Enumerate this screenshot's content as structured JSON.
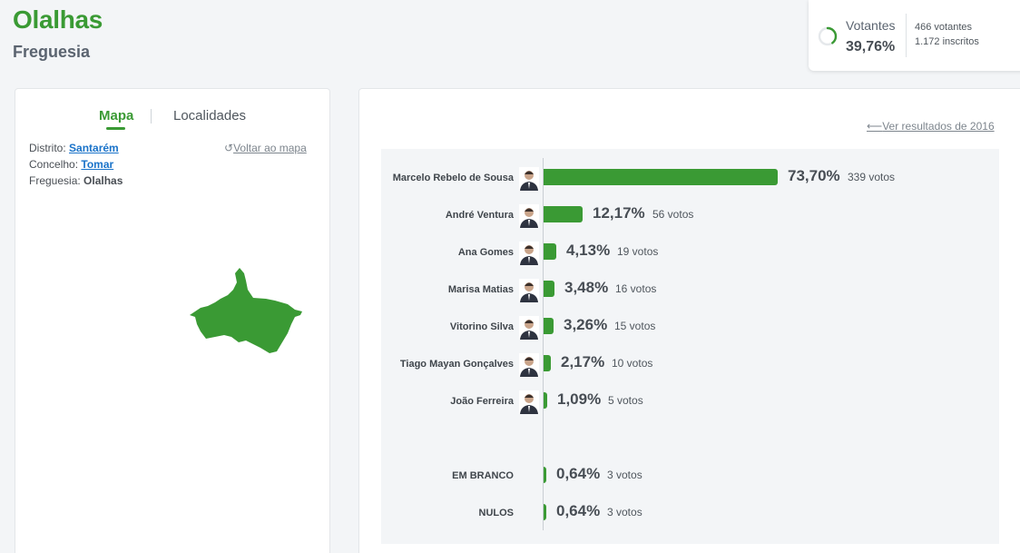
{
  "header": {
    "title": "Olalhas",
    "subtitle": "Freguesia"
  },
  "stats": {
    "label": "Votantes",
    "percent": "39,76%",
    "percent_value": 39.76,
    "votantes": "466 votantes",
    "inscritos": "1.172 inscritos"
  },
  "tabs": {
    "map": "Mapa",
    "localities": "Localidades"
  },
  "location": {
    "distrito_label": "Distrito:",
    "distrito_value": "Santarém",
    "concelho_label": "Concelho:",
    "concelho_value": "Tomar",
    "freguesia_label": "Freguesia:",
    "freguesia_value": "Olalhas",
    "back_to_map": "Voltar ao mapa"
  },
  "results": {
    "previous_link": "Ver resultados de 2016",
    "candidates": [
      {
        "name": "Marcelo Rebelo de Sousa",
        "percent": "73,70%",
        "value": 73.7,
        "votes": "339 votos",
        "avatar": "candidate-photo"
      },
      {
        "name": "André Ventura",
        "percent": "12,17%",
        "value": 12.17,
        "votes": "56 votos",
        "avatar": "candidate-photo"
      },
      {
        "name": "Ana Gomes",
        "percent": "4,13%",
        "value": 4.13,
        "votes": "19 votos",
        "avatar": "candidate-photo"
      },
      {
        "name": "Marisa Matias",
        "percent": "3,48%",
        "value": 3.48,
        "votes": "16 votos",
        "avatar": "candidate-photo"
      },
      {
        "name": "Vitorino Silva",
        "percent": "3,26%",
        "value": 3.26,
        "votes": "15 votos",
        "avatar": "candidate-photo"
      },
      {
        "name": "Tiago Mayan Gonçalves",
        "percent": "2,17%",
        "value": 2.17,
        "votes": "10 votos",
        "avatar": "candidate-photo"
      },
      {
        "name": "João Ferreira",
        "percent": "1,09%",
        "value": 1.09,
        "votes": "5 votos",
        "avatar": "candidate-photo"
      }
    ],
    "others": [
      {
        "name": "EM BRANCO",
        "percent": "0,64%",
        "value": 0.64,
        "votes": "3 votos"
      },
      {
        "name": "NULOS",
        "percent": "0,64%",
        "value": 0.64,
        "votes": "3 votos"
      }
    ]
  },
  "colors": {
    "brand_green": "#3a9a34",
    "link_blue": "#1a73c9"
  }
}
